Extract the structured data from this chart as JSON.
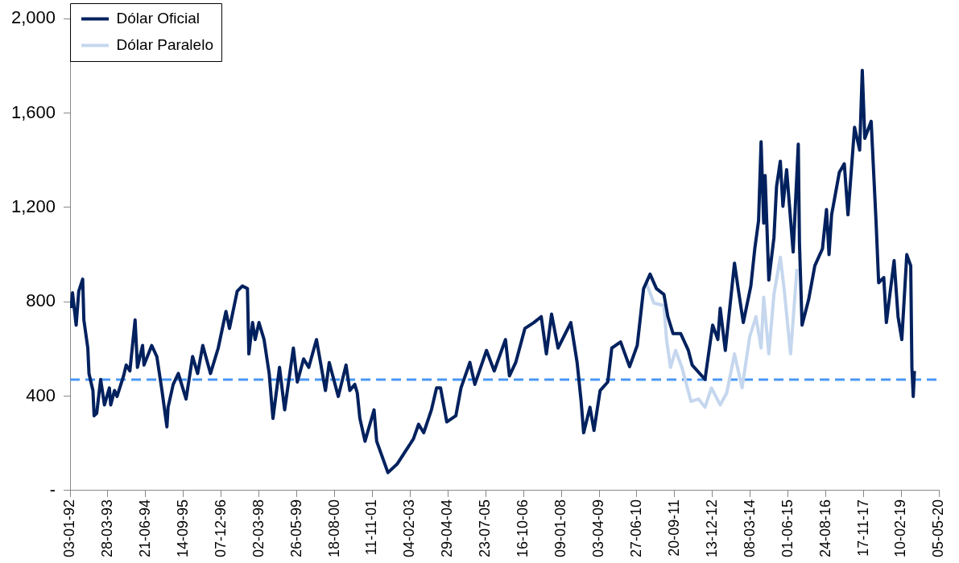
{
  "chart_data": {
    "type": "line",
    "legend": "top left",
    "grid": false,
    "marker": "none",
    "line_style": "solid",
    "xlim": [
      "1992-01-03",
      "2020-05-05"
    ],
    "xticks": [
      {
        "value": "1992-01-03",
        "label": "03-01-92"
      },
      {
        "value": "1993-03-28",
        "label": "28-03-93"
      },
      {
        "value": "1994-06-21",
        "label": "21-06-94"
      },
      {
        "value": "1995-09-14",
        "label": "14-09-95"
      },
      {
        "value": "1996-12-07",
        "label": "07-12-96"
      },
      {
        "value": "1998-03-02",
        "label": "02-03-98"
      },
      {
        "value": "1999-05-26",
        "label": "26-05-99"
      },
      {
        "value": "2000-08-18",
        "label": "18-08-00"
      },
      {
        "value": "2001-11-11",
        "label": "11-11-01"
      },
      {
        "value": "2003-02-04",
        "label": "04-02-03"
      },
      {
        "value": "2004-04-29",
        "label": "29-04-04"
      },
      {
        "value": "2005-07-23",
        "label": "23-07-05"
      },
      {
        "value": "2006-10-16",
        "label": "16-10-06"
      },
      {
        "value": "2008-01-09",
        "label": "09-01-08"
      },
      {
        "value": "2009-04-03",
        "label": "03-04-09"
      },
      {
        "value": "2010-06-27",
        "label": "27-06-10"
      },
      {
        "value": "2011-09-20",
        "label": "20-09-11"
      },
      {
        "value": "2012-12-13",
        "label": "13-12-12"
      },
      {
        "value": "2014-03-08",
        "label": "08-03-14"
      },
      {
        "value": "2015-06-01",
        "label": "01-06-15"
      },
      {
        "value": "2016-08-24",
        "label": "24-08-16"
      },
      {
        "value": "2017-11-17",
        "label": "17-11-17"
      },
      {
        "value": "2019-02-10",
        "label": "10-02-19"
      },
      {
        "value": "2020-05-05",
        "label": "05-05-20"
      }
    ],
    "ylim": [
      0,
      2000
    ],
    "yticks": [
      {
        "value": 0,
        "label": "-"
      },
      400,
      800,
      {
        "value": 1200,
        "label": "1,200"
      },
      {
        "value": 1600,
        "label": "1,600"
      },
      {
        "value": 2000,
        "label": "2,000"
      }
    ],
    "ref_lines": [
      {
        "axis": "y",
        "value": 470,
        "color": "#4a97f5",
        "line_style": "dashed"
      }
    ],
    "series": [
      {
        "name": "Dólar Oficial",
        "color": "#00215e",
        "x": [
          "1992-01-15",
          "1992-02-01",
          "1992-03-15",
          "1992-04-15",
          "1992-06-01",
          "1992-06-15",
          "1992-08-01",
          "1992-08-15",
          "1992-10-01",
          "1992-10-15",
          "1992-11-15",
          "1993-01-01",
          "1993-02-15",
          "1993-04-15",
          "1993-05-01",
          "1993-06-15",
          "1993-07-15",
          "1993-10-01",
          "1993-11-01",
          "1993-12-15",
          "1994-02-15",
          "1994-03-15",
          "1994-05-15",
          "1994-06-01",
          "1994-09-01",
          "1994-11-01",
          "1995-01-01",
          "1995-03-01",
          "1995-03-15",
          "1995-05-15",
          "1995-07-15",
          "1995-10-15",
          "1996-01-01",
          "1996-03-01",
          "1996-05-01",
          "1996-08-01",
          "1996-11-01",
          "1997-02-01",
          "1997-03-15",
          "1997-06-15",
          "1997-08-15",
          "1997-10-15",
          "1997-11-01",
          "1997-12-15",
          "1998-01-15",
          "1998-03-01",
          "1998-05-01",
          "1998-07-01",
          "1998-08-15",
          "1998-11-01",
          "1999-01-01",
          "1999-04-15",
          "1999-06-01",
          "1999-08-15",
          "1999-10-15",
          "2000-01-15",
          "2000-05-01",
          "2000-06-15",
          "2000-10-01",
          "2001-01-01",
          "2001-02-15",
          "2001-04-15",
          "2001-05-15",
          "2001-06-15",
          "2001-08-15",
          "2001-12-01",
          "2002-01-01",
          "2002-05-15",
          "2002-09-01",
          "2002-12-01",
          "2003-03-15",
          "2003-05-15",
          "2003-07-15",
          "2003-10-15",
          "2003-12-15",
          "2004-02-01",
          "2004-04-15",
          "2004-08-01",
          "2004-10-01",
          "2005-01-15",
          "2005-03-15",
          "2005-08-01",
          "2005-11-01",
          "2006-03-15",
          "2006-05-01",
          "2006-07-15",
          "2006-11-01",
          "2007-02-15",
          "2007-05-15",
          "2007-07-15",
          "2007-09-15",
          "2007-12-01",
          "2008-05-01",
          "2008-07-15",
          "2008-09-01",
          "2008-10-01",
          "2008-12-15",
          "2009-02-01",
          "2009-04-15",
          "2009-07-15",
          "2009-09-01",
          "2009-12-15",
          "2010-04-01",
          "2010-07-01",
          "2010-09-15",
          "2010-12-01",
          "2011-02-15",
          "2011-05-15",
          "2011-07-01",
          "2011-09-01",
          "2011-12-01",
          "2012-03-01",
          "2012-04-15",
          "2012-09-15",
          "2012-12-15",
          "2013-02-15",
          "2013-03-15",
          "2013-05-15",
          "2013-09-01",
          "2013-10-15",
          "2013-12-15",
          "2014-03-15",
          "2014-05-01",
          "2014-06-15",
          "2014-07-15",
          "2014-08-15",
          "2014-09-01",
          "2014-10-15",
          "2014-12-15",
          "2015-01-15",
          "2015-03-01",
          "2015-04-01",
          "2015-05-15",
          "2015-08-01",
          "2015-10-01",
          "2015-10-15",
          "2015-11-15",
          "2016-02-01",
          "2016-04-15",
          "2016-07-15",
          "2016-09-01",
          "2016-10-01",
          "2016-11-01",
          "2017-02-01",
          "2017-04-01",
          "2017-05-15",
          "2017-08-01",
          "2017-10-01",
          "2017-11-01",
          "2017-12-01",
          "2018-02-15",
          "2018-04-15",
          "2018-05-15",
          "2018-07-15",
          "2018-08-15",
          "2018-11-15",
          "2019-01-01",
          "2019-02-15",
          "2019-04-15",
          "2019-06-01",
          "2019-06-15",
          "2019-07-01",
          "2019-07-15"
        ],
        "values": [
          773,
          838,
          701,
          845,
          896,
          723,
          604,
          496,
          424,
          317,
          328,
          471,
          363,
          435,
          363,
          424,
          399,
          486,
          532,
          507,
          723,
          522,
          615,
          532,
          615,
          568,
          424,
          270,
          353,
          450,
          496,
          388,
          568,
          496,
          615,
          496,
          604,
          759,
          687,
          845,
          867,
          856,
          579,
          712,
          640,
          712,
          640,
          496,
          306,
          522,
          342,
          604,
          460,
          558,
          522,
          640,
          424,
          543,
          399,
          532,
          424,
          450,
          414,
          306,
          209,
          342,
          209,
          76,
          112,
          162,
          219,
          281,
          245,
          342,
          435,
          435,
          291,
          317,
          435,
          543,
          450,
          594,
          507,
          640,
          486,
          543,
          687,
          712,
          737,
          579,
          748,
          604,
          712,
          543,
          378,
          245,
          353,
          255,
          424,
          460,
          604,
          630,
          525,
          615,
          856,
          917,
          856,
          831,
          737,
          665,
          665,
          594,
          532,
          471,
          701,
          640,
          773,
          594,
          964,
          856,
          712,
          867,
          1025,
          1144,
          1478,
          1133,
          1335,
          892,
          1072,
          1288,
          1396,
          1205,
          1360,
          1011,
          1468,
          1047,
          701,
          809,
          953,
          1025,
          1191,
          1000,
          1169,
          1349,
          1385,
          1169,
          1540,
          1443,
          1781,
          1493,
          1565,
          1133,
          881,
          903,
          712,
          975,
          737,
          640,
          1000,
          953,
          522,
          399,
          507
        ]
      },
      {
        "name": "Dólar Paralelo",
        "color": "#c5d7ee",
        "x": [
          "2010-10-15",
          "2011-01-15",
          "2011-05-15",
          "2011-06-15",
          "2011-08-01",
          "2011-10-01",
          "2011-12-15",
          "2012-04-01",
          "2012-07-01",
          "2012-09-15",
          "2012-12-01",
          "2013-03-15",
          "2013-06-01",
          "2013-09-01",
          "2013-12-01",
          "2014-03-01",
          "2014-05-15",
          "2014-07-15",
          "2014-08-15",
          "2014-10-15",
          "2014-12-15",
          "2015-03-01",
          "2015-04-15",
          "2015-07-01",
          "2015-09-15"
        ],
        "values": [
          881,
          795,
          784,
          640,
          522,
          594,
          522,
          378,
          388,
          353,
          435,
          363,
          414,
          579,
          435,
          651,
          737,
          604,
          820,
          579,
          831,
          989,
          856,
          579,
          939
        ]
      }
    ]
  }
}
